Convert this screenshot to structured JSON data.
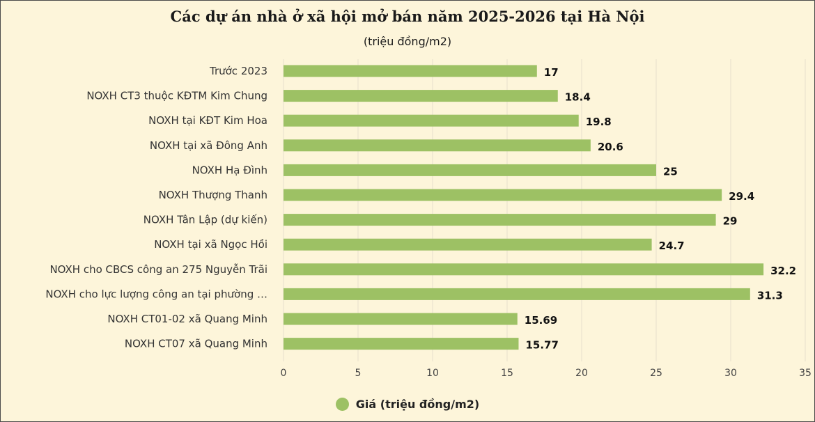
{
  "chart_data": {
    "type": "bar",
    "orientation": "horizontal",
    "title": "Các dự án nhà ở xã hội mở bán năm 2025-2026 tại Hà Nội",
    "subtitle": "(triệu đồng/m2)",
    "categories": [
      "Trước 2023",
      "NOXH CT3 thuộc KĐTM Kim Chung",
      "NOXH tại KĐT Kim Hoa",
      "NOXH tại xã Đông Anh",
      "NOXH Hạ Đình",
      "NOXH Thượng Thanh",
      "NOXH Tân Lập (dự kiến)",
      "NOXH tại xã Ngọc Hồi",
      "NOXH cho CBCS công an 275 Nguyễn Trãi",
      "NOXH cho lực lượng công an tại phường …",
      "NOXH CT01-02 xã Quang Minh",
      "NOXH CT07 xã Quang Minh"
    ],
    "series": [
      {
        "name": "Giá (triệu đồng/m2)",
        "values": [
          17,
          18.4,
          19.8,
          20.6,
          25,
          29.4,
          29,
          24.7,
          32.2,
          31.3,
          15.69,
          15.77
        ],
        "labels": [
          "17",
          "18.4",
          "19.8",
          "20.6",
          "25",
          "29.4",
          "29",
          "24.7",
          "32.2",
          "31.3",
          "15.69",
          "15.77"
        ]
      }
    ],
    "xticks": [
      "0",
      "5",
      "10",
      "15",
      "20",
      "25",
      "30",
      "35"
    ],
    "xlim": [
      0,
      35
    ],
    "grid": true,
    "legend_position": "bottom"
  },
  "colors": {
    "bar": "#9dc164",
    "background": "#fdf5da",
    "grid": "#e6e0cc"
  }
}
